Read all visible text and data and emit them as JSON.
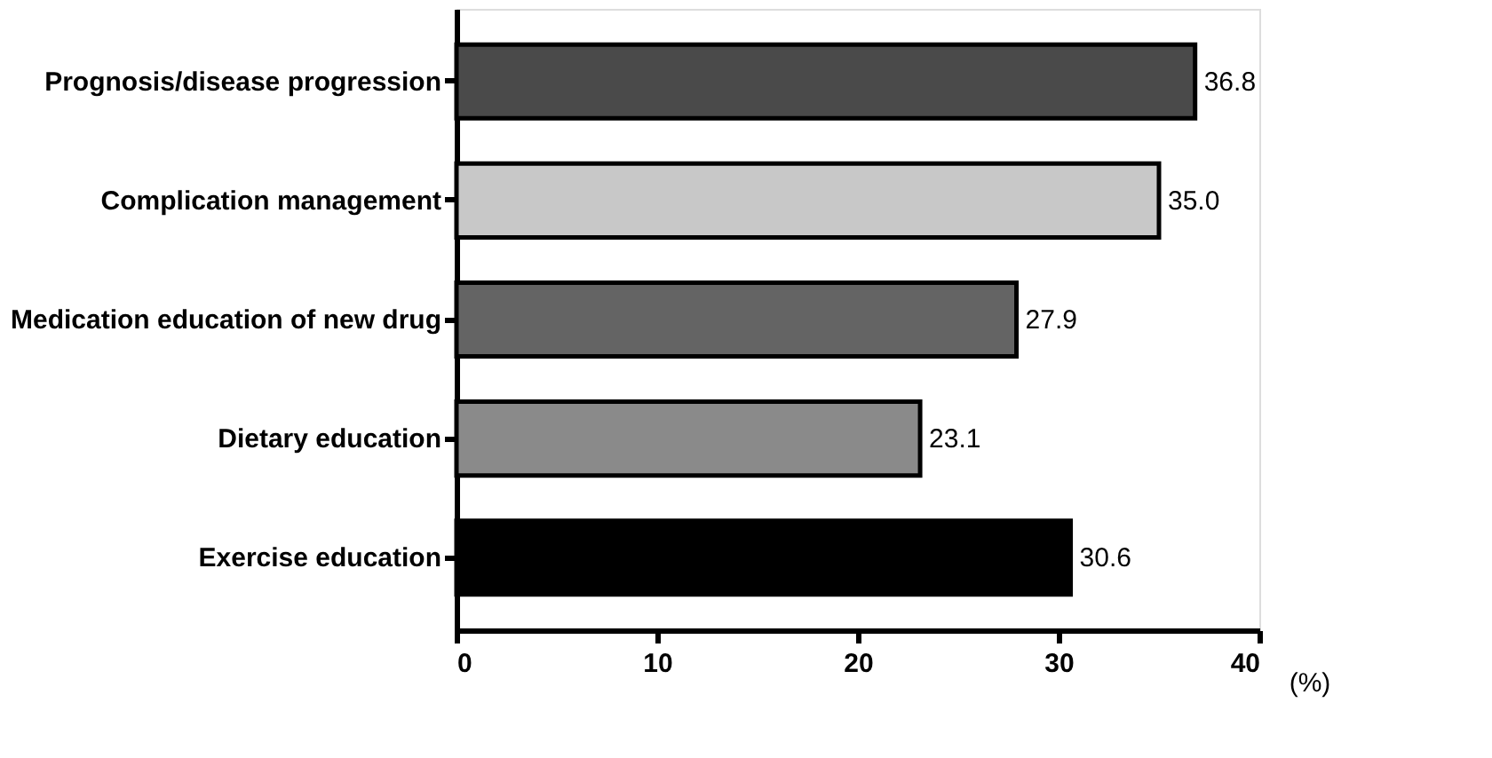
{
  "chart_data": {
    "type": "bar",
    "orientation": "horizontal",
    "xlabel": "(%)",
    "categories": [
      "Prognosis/disease progression",
      "Complication management",
      "Medication education of new drug",
      "Dietary education",
      "Exercise education"
    ],
    "values": [
      36.8,
      35.0,
      27.9,
      23.1,
      30.6
    ],
    "value_labels": [
      "36.8",
      "35.0",
      "27.9",
      "23.1",
      "30.6"
    ],
    "colors": [
      "#4a4a4a",
      "#c8c8c8",
      "#646464",
      "#8a8a8a",
      "#000000"
    ],
    "xlim": [
      0,
      40
    ],
    "xticks": [
      0,
      10,
      20,
      30,
      40
    ],
    "grid": false,
    "legend": false
  }
}
